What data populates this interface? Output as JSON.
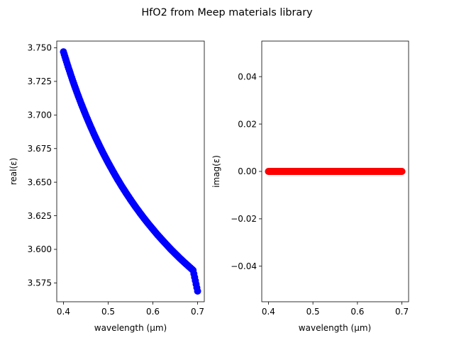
{
  "figure": {
    "title": "HfO2 from Meep materials library"
  },
  "chart_data": [
    {
      "type": "scatter",
      "xlabel": "wavelength (μm)",
      "ylabel": "real(ε)",
      "xlim": [
        0.385,
        0.715
      ],
      "ylim": [
        3.561,
        3.755
      ],
      "xticks": [
        0.4,
        0.5,
        0.6,
        0.7
      ],
      "xtick_labels": [
        "0.4",
        "0.5",
        "0.6",
        "0.7"
      ],
      "yticks": [
        3.575,
        3.6,
        3.625,
        3.65,
        3.675,
        3.7,
        3.725,
        3.75
      ],
      "ytick_labels": [
        "3.575",
        "3.600",
        "3.625",
        "3.650",
        "3.675",
        "3.700",
        "3.725",
        "3.750"
      ],
      "grid": false,
      "series": [
        {
          "color": "#0000ff",
          "marker": "circle",
          "x": [
            0.4,
            0.41,
            0.42,
            0.43,
            0.44,
            0.45,
            0.46,
            0.47,
            0.48,
            0.49,
            0.5,
            0.51,
            0.52,
            0.53,
            0.54,
            0.55,
            0.56,
            0.57,
            0.58,
            0.59,
            0.6,
            0.61,
            0.62,
            0.63,
            0.64,
            0.65,
            0.66,
            0.67,
            0.68,
            0.69,
            0.7
          ],
          "y": [
            3.747,
            3.7363,
            3.7263,
            3.7169,
            3.7081,
            3.6998,
            3.692,
            3.6845,
            3.6775,
            3.6708,
            3.6645,
            3.6585,
            3.6527,
            3.6472,
            3.642,
            3.637,
            3.6322,
            3.6276,
            3.6232,
            3.619,
            3.615,
            3.611,
            3.6073,
            3.6037,
            3.6001,
            3.5968,
            3.5935,
            3.5904,
            3.5874,
            3.5844,
            3.5689
          ]
        }
      ]
    },
    {
      "type": "scatter",
      "xlabel": "wavelength (μm)",
      "ylabel": "imag(ε)",
      "xlim": [
        0.385,
        0.715
      ],
      "ylim": [
        -0.055,
        0.055
      ],
      "xticks": [
        0.4,
        0.5,
        0.6,
        0.7
      ],
      "xtick_labels": [
        "0.4",
        "0.5",
        "0.6",
        "0.7"
      ],
      "yticks": [
        -0.04,
        -0.02,
        0.0,
        0.02,
        0.04
      ],
      "ytick_labels": [
        "−0.04",
        "−0.02",
        "0.00",
        "0.02",
        "0.04"
      ],
      "grid": false,
      "series": [
        {
          "color": "#ff0000",
          "marker": "circle",
          "x": [
            0.4,
            0.41,
            0.42,
            0.43,
            0.44,
            0.45,
            0.46,
            0.47,
            0.48,
            0.49,
            0.5,
            0.51,
            0.52,
            0.53,
            0.54,
            0.55,
            0.56,
            0.57,
            0.58,
            0.59,
            0.6,
            0.61,
            0.62,
            0.63,
            0.64,
            0.65,
            0.66,
            0.67,
            0.68,
            0.69,
            0.7
          ],
          "y": [
            0,
            0,
            0,
            0,
            0,
            0,
            0,
            0,
            0,
            0,
            0,
            0,
            0,
            0,
            0,
            0,
            0,
            0,
            0,
            0,
            0,
            0,
            0,
            0,
            0,
            0,
            0,
            0,
            0,
            0,
            0
          ]
        }
      ]
    }
  ]
}
